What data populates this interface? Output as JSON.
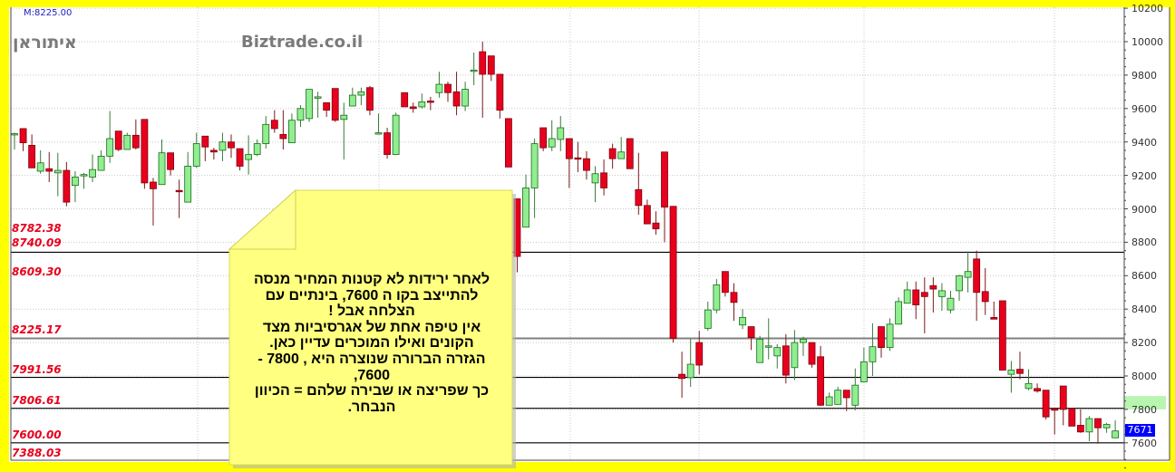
{
  "header": {
    "marker": "M:8225.00",
    "symbol_hebrew": "איתוראן",
    "watermark": "Biztrade.co.il"
  },
  "colors": {
    "up": "#90ee90",
    "down": "#e8001c",
    "background_border": "#ffff00",
    "note": "#ffff80",
    "last_price_badge": "#0000ff",
    "level_labels": "#e8001c"
  },
  "note": {
    "text": "לאחר ירידות לא קטנות המחיר מנסה\nלהתייצב בקו ה 7600, בינתיים  עם\nהצלחה אבל !\nאין טיפה אחת של אגרסיביות מצד\nהקונים ואילו המוכרים עדיין כאן.\nהגזרה הברורה שנוצרה היא , 7800 -\n7600,\nכך שפריצה או שבירה שלהם = הכיוון\nהנבחר."
  },
  "chart_data": {
    "type": "candlestick",
    "title": "",
    "ylim": [
      7300,
      10200
    ],
    "yticks": [
      10200,
      10000,
      9800,
      9600,
      9400,
      9200,
      9000,
      8800,
      8600,
      8400,
      8200,
      8000,
      7800,
      7600
    ],
    "grid": true,
    "last_price": "7671",
    "levels": [
      {
        "label": "8782.38",
        "value": 8782.38,
        "line": false
      },
      {
        "label": "8740.09",
        "value": 8740.09,
        "line": true,
        "color": "#000000"
      },
      {
        "label": "8609.30",
        "value": 8609.3,
        "line": false
      },
      {
        "label": "8225.17",
        "value": 8225.17,
        "line": true,
        "color": "#808080"
      },
      {
        "label": "7991.56",
        "value": 7991.56,
        "line": true,
        "color": "#000000"
      },
      {
        "label": "7806.61",
        "value": 7806.61,
        "line": true,
        "color": "#000000"
      },
      {
        "label": "7600.00",
        "value": 7600.0,
        "line": true,
        "color": "#000000"
      },
      {
        "label": "7388.03",
        "value": 7388.03,
        "line": false
      }
    ],
    "ohlc": [
      [
        9445,
        9455,
        9355,
        9450
      ],
      [
        9480,
        9480,
        9345,
        9395
      ],
      [
        9380,
        9445,
        9245,
        9245
      ],
      [
        9225,
        9350,
        9210,
        9275
      ],
      [
        9240,
        9340,
        9160,
        9225
      ],
      [
        9215,
        9335,
        9075,
        9230
      ],
      [
        9230,
        9280,
        9015,
        9040
      ],
      [
        9140,
        9225,
        9040,
        9190
      ],
      [
        9200,
        9215,
        9120,
        9205
      ],
      [
        9190,
        9325,
        9160,
        9235
      ],
      [
        9230,
        9350,
        9230,
        9315
      ],
      [
        9315,
        9585,
        9275,
        9420
      ],
      [
        9465,
        9465,
        9345,
        9355
      ],
      [
        9355,
        9455,
        9355,
        9440
      ],
      [
        9440,
        9535,
        9355,
        9365
      ],
      [
        9535,
        9535,
        9120,
        9155
      ],
      [
        9160,
        9185,
        8900,
        9120
      ],
      [
        9145,
        9415,
        9145,
        9335
      ],
      [
        9335,
        9335,
        9200,
        9235
      ],
      [
        9110,
        9175,
        8945,
        9105
      ],
      [
        9040,
        9340,
        9040,
        9255
      ],
      [
        9255,
        9455,
        9245,
        9390
      ],
      [
        9435,
        9435,
        9285,
        9370
      ],
      [
        9350,
        9365,
        9295,
        9340
      ],
      [
        9350,
        9455,
        9285,
        9400
      ],
      [
        9400,
        9445,
        9305,
        9365
      ],
      [
        9360,
        9360,
        9230,
        9255
      ],
      [
        9295,
        9440,
        9205,
        9325
      ],
      [
        9325,
        9415,
        9315,
        9390
      ],
      [
        9390,
        9555,
        9360,
        9505
      ],
      [
        9530,
        9590,
        9455,
        9480
      ],
      [
        9445,
        9590,
        9355,
        9420
      ],
      [
        9395,
        9570,
        9395,
        9530
      ],
      [
        9530,
        9620,
        9490,
        9600
      ],
      [
        9540,
        9715,
        9520,
        9715
      ],
      [
        9665,
        9700,
        9545,
        9670
      ],
      [
        9635,
        9635,
        9550,
        9590
      ],
      [
        9720,
        9720,
        9520,
        9530
      ],
      [
        9535,
        9635,
        9295,
        9560
      ],
      [
        9615,
        9725,
        9615,
        9680
      ],
      [
        9680,
        9725,
        9620,
        9700
      ],
      [
        9725,
        9735,
        9560,
        9590
      ],
      [
        9450,
        9570,
        9445,
        9455
      ],
      [
        9455,
        9485,
        9300,
        9325
      ],
      [
        9325,
        9575,
        9325,
        9560
      ],
      [
        9695,
        9695,
        9610,
        9610
      ],
      [
        9610,
        9635,
        9575,
        9600
      ],
      [
        9610,
        9690,
        9600,
        9640
      ],
      [
        9645,
        9670,
        9590,
        9640
      ],
      [
        9695,
        9820,
        9665,
        9745
      ],
      [
        9745,
        9760,
        9640,
        9695
      ],
      [
        9700,
        9820,
        9560,
        9615
      ],
      [
        9615,
        9760,
        9585,
        9715
      ],
      [
        9825,
        9935,
        9740,
        9830
      ],
      [
        9940,
        10000,
        9545,
        9805
      ],
      [
        9915,
        9915,
        9765,
        9805
      ],
      [
        9805,
        9805,
        9540,
        9590
      ],
      [
        9540,
        9540,
        9250,
        9250
      ],
      [
        9060,
        9060,
        8620,
        8715
      ],
      [
        8890,
        9205,
        8890,
        9125
      ],
      [
        9125,
        9420,
        8945,
        9390
      ],
      [
        9485,
        9485,
        9345,
        9365
      ],
      [
        9370,
        9530,
        9345,
        9420
      ],
      [
        9415,
        9555,
        9345,
        9485
      ],
      [
        9420,
        9420,
        9125,
        9300
      ],
      [
        9305,
        9400,
        9220,
        9300
      ],
      [
        9300,
        9345,
        9175,
        9230
      ],
      [
        9155,
        9255,
        9040,
        9210
      ],
      [
        9215,
        9295,
        9080,
        9125
      ],
      [
        9360,
        9390,
        9240,
        9300
      ],
      [
        9300,
        9430,
        9300,
        9340
      ],
      [
        9420,
        9420,
        9240,
        9240
      ],
      [
        9115,
        9335,
        8965,
        9020
      ],
      [
        9020,
        9055,
        8910,
        8910
      ],
      [
        8915,
        8985,
        8845,
        8880
      ],
      [
        9340,
        9340,
        8800,
        9010
      ],
      [
        9015,
        9015,
        8200,
        8225
      ],
      [
        8010,
        8145,
        7870,
        7985
      ],
      [
        7990,
        8220,
        7935,
        8070
      ],
      [
        8200,
        8270,
        8010,
        8065
      ],
      [
        8285,
        8445,
        8270,
        8395
      ],
      [
        8395,
        8580,
        8375,
        8545
      ],
      [
        8625,
        8625,
        8475,
        8500
      ],
      [
        8500,
        8555,
        8330,
        8440
      ],
      [
        8305,
        8400,
        8280,
        8350
      ],
      [
        8295,
        8295,
        8155,
        8230
      ],
      [
        8080,
        8240,
        8080,
        8220
      ],
      [
        8175,
        8345,
        8100,
        8180
      ],
      [
        8120,
        8190,
        8045,
        8170
      ],
      [
        8180,
        8250,
        7955,
        8005
      ],
      [
        8050,
        8275,
        7975,
        8200
      ],
      [
        8200,
        8235,
        8120,
        8220
      ],
      [
        8200,
        8200,
        8050,
        8070
      ],
      [
        8115,
        8180,
        7820,
        7825
      ],
      [
        7825,
        7900,
        7825,
        7875
      ],
      [
        7830,
        7935,
        7830,
        7915
      ],
      [
        7915,
        7915,
        7790,
        7870
      ],
      [
        7825,
        8045,
        7795,
        7945
      ],
      [
        7965,
        8170,
        7965,
        8085
      ],
      [
        8085,
        8315,
        8000,
        8175
      ],
      [
        8295,
        8295,
        8110,
        8170
      ],
      [
        8170,
        8345,
        8150,
        8310
      ],
      [
        8310,
        8470,
        8310,
        8445
      ],
      [
        8435,
        8565,
        8435,
        8515
      ],
      [
        8515,
        8565,
        8340,
        8425
      ],
      [
        8500,
        8590,
        8255,
        8475
      ],
      [
        8540,
        8590,
        8380,
        8520
      ],
      [
        8475,
        8555,
        8390,
        8510
      ],
      [
        8395,
        8510,
        8375,
        8465
      ],
      [
        8510,
        8605,
        8450,
        8600
      ],
      [
        8590,
        8745,
        8500,
        8625
      ],
      [
        8700,
        8750,
        8330,
        8500
      ],
      [
        8505,
        8645,
        8365,
        8445
      ],
      [
        8350,
        8445,
        8340,
        8340
      ],
      [
        8450,
        8450,
        8035,
        8035
      ],
      [
        8010,
        8090,
        7900,
        8035
      ],
      [
        8040,
        8145,
        7980,
        8015
      ],
      [
        7925,
        8040,
        7915,
        7955
      ],
      [
        7925,
        7955,
        7900,
        7910
      ],
      [
        7915,
        7915,
        7740,
        7755
      ],
      [
        7805,
        7805,
        7650,
        7795
      ],
      [
        7940,
        7940,
        7705,
        7800
      ],
      [
        7805,
        7805,
        7700,
        7700
      ],
      [
        7705,
        7800,
        7660,
        7665
      ],
      [
        7665,
        7760,
        7610,
        7745
      ],
      [
        7745,
        7745,
        7595,
        7690
      ],
      [
        7690,
        7720,
        7660,
        7710
      ],
      [
        7630,
        7735,
        7630,
        7671
      ]
    ]
  }
}
